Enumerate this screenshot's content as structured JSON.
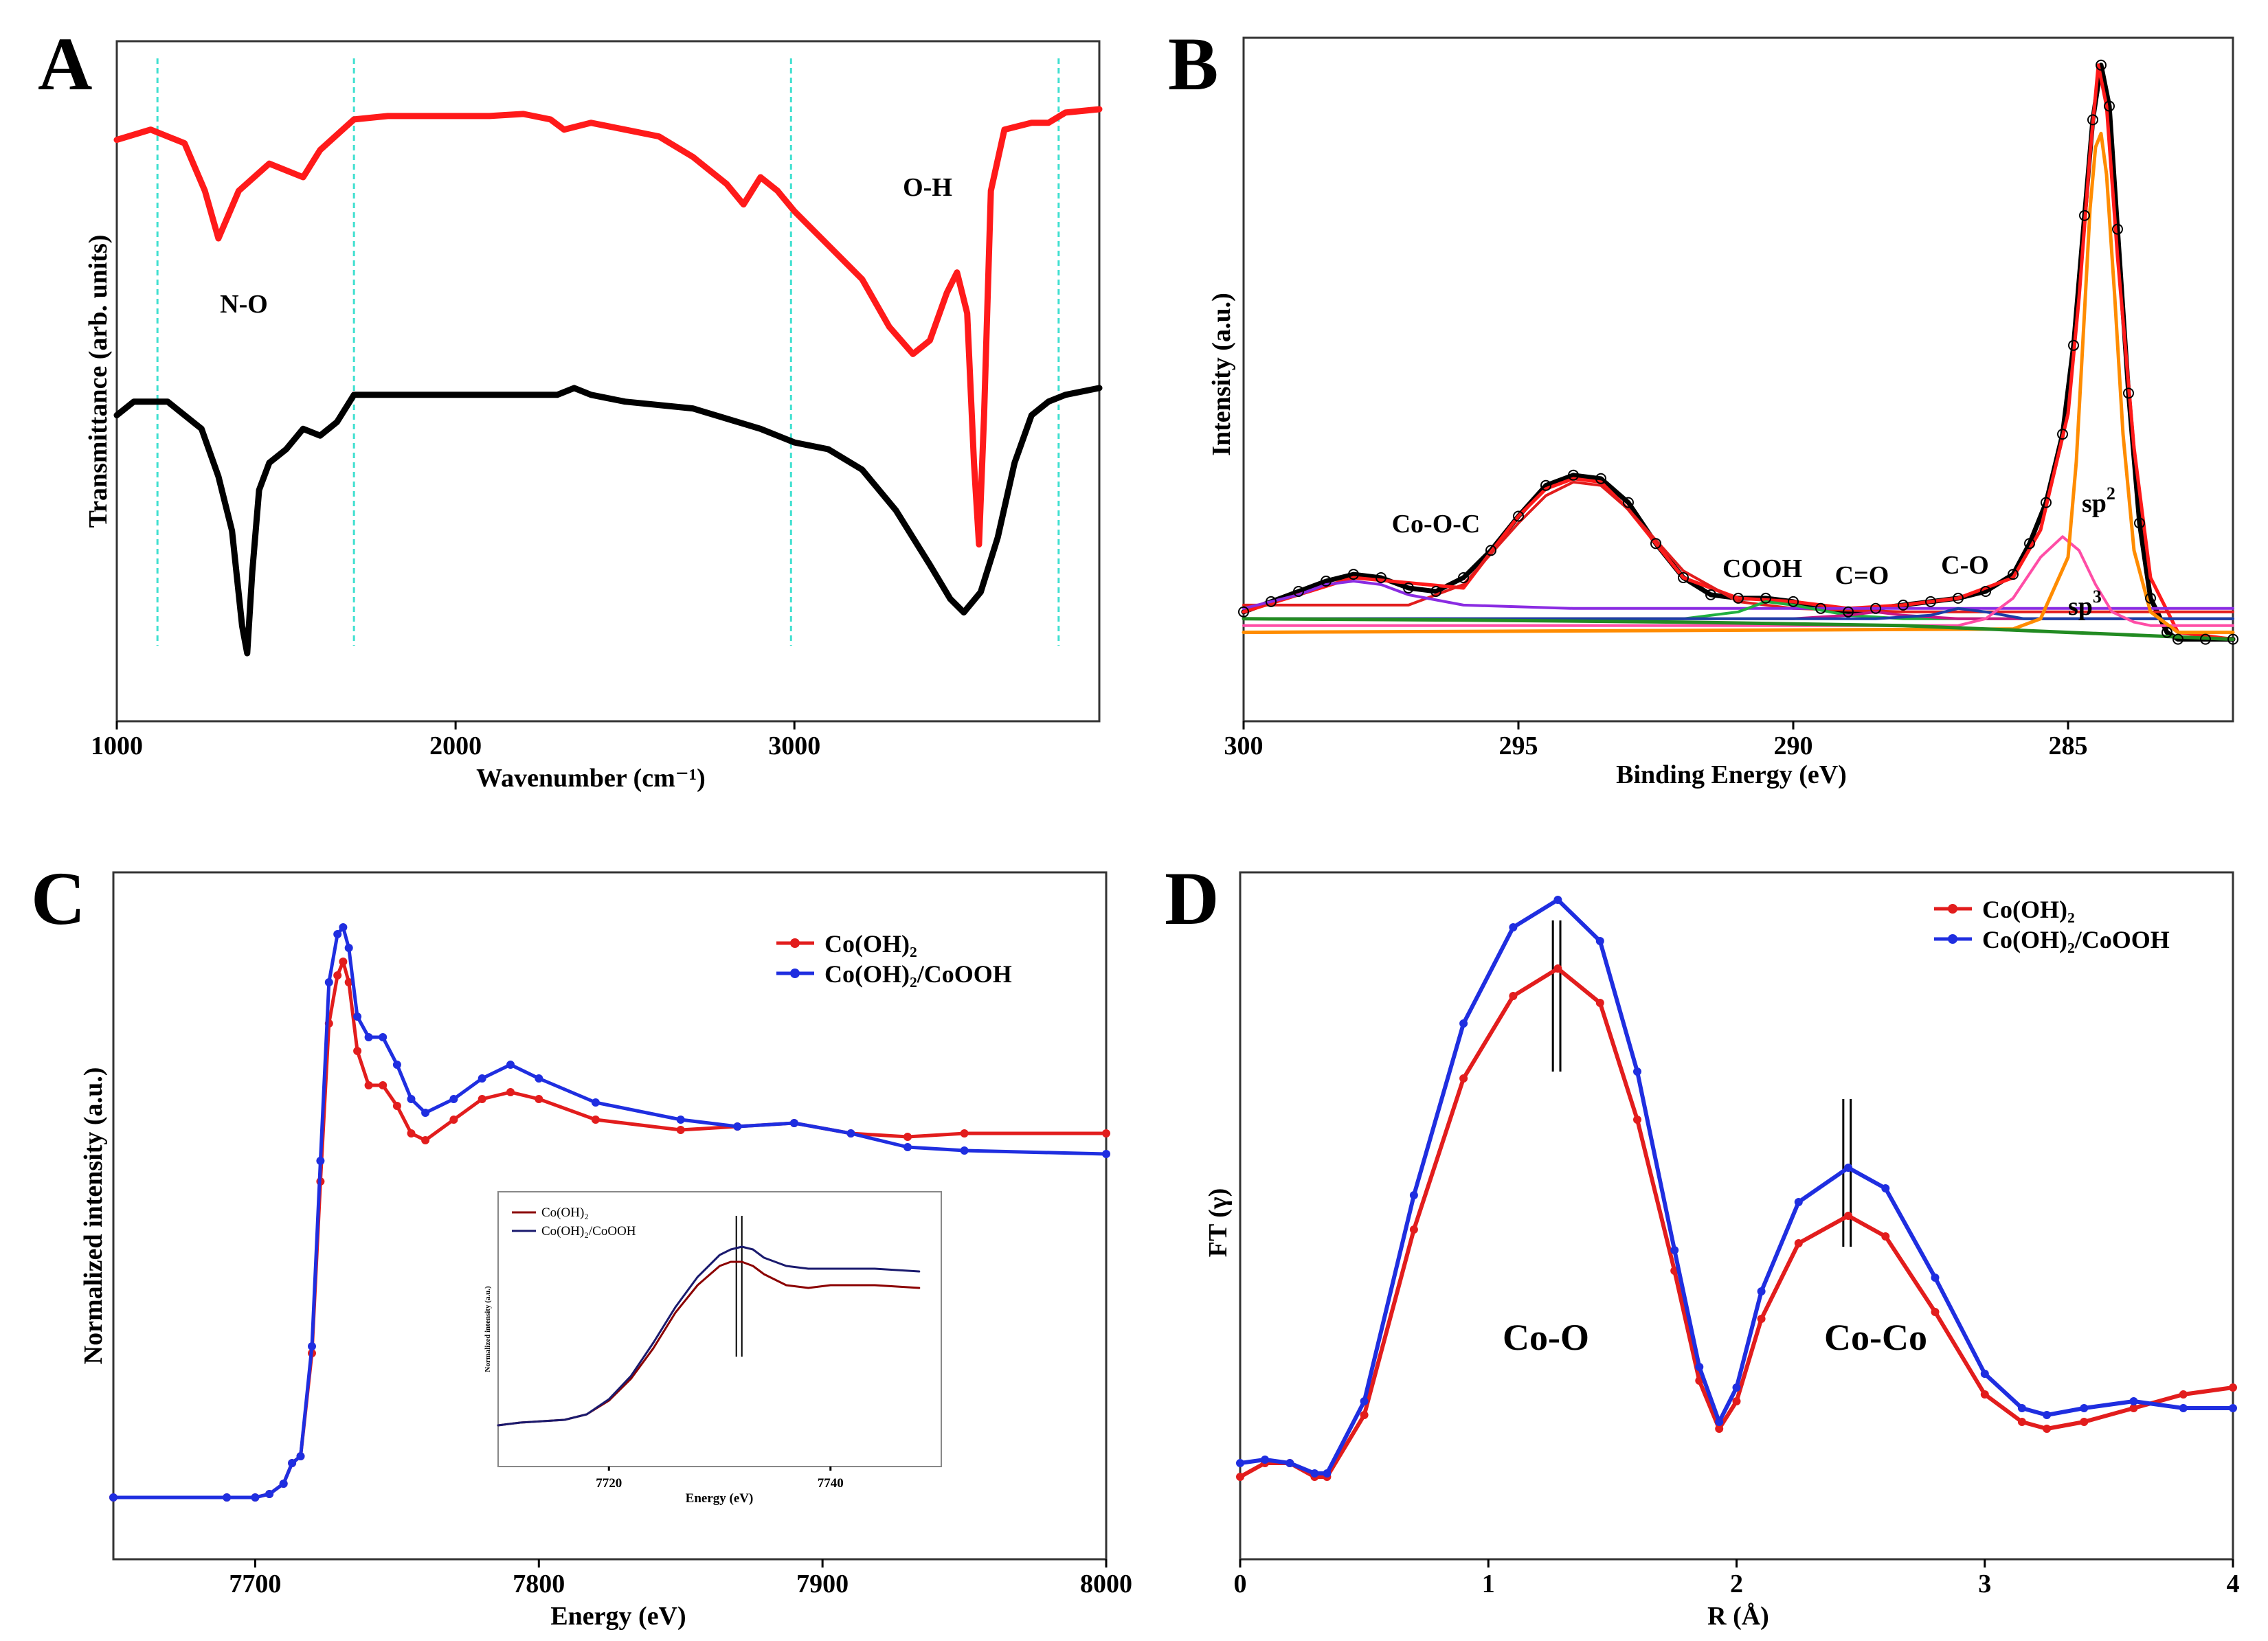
{
  "chart_data": [
    {
      "panel": "A",
      "type": "line",
      "title": "",
      "xlabel": "Wavenumber (cm⁻¹)",
      "ylabel": "Transmittance (arb. units)",
      "xlim": [
        1000,
        3900
      ],
      "ylim": [
        0,
        1
      ],
      "xticks": [
        1000,
        2000,
        3000
      ],
      "tick_labels": [
        "1000",
        "2000",
        "3000"
      ],
      "annotations": [
        "N-O",
        "O-H"
      ],
      "reference_lines_x": [
        1120,
        1700,
        2990,
        3780
      ],
      "series": [
        {
          "name": "top trace (red)",
          "color": "#ff1a1a",
          "x": [
            1000,
            1100,
            1200,
            1260,
            1300,
            1360,
            1450,
            1550,
            1600,
            1700,
            1800,
            2000,
            2100,
            2200,
            2280,
            2320,
            2400,
            2500,
            2600,
            2700,
            2800,
            2850,
            2900,
            2950,
            3000,
            3100,
            3200,
            3280,
            3350,
            3400,
            3450,
            3480,
            3510,
            3530,
            3545,
            3560,
            3580,
            3620,
            3700,
            3750,
            3800,
            3900
          ],
          "y": [
            0.855,
            0.87,
            0.85,
            0.78,
            0.71,
            0.78,
            0.82,
            0.8,
            0.84,
            0.885,
            0.89,
            0.89,
            0.89,
            0.893,
            0.885,
            0.87,
            0.88,
            0.87,
            0.86,
            0.83,
            0.79,
            0.76,
            0.8,
            0.78,
            0.75,
            0.7,
            0.65,
            0.58,
            0.54,
            0.56,
            0.63,
            0.66,
            0.6,
            0.38,
            0.26,
            0.45,
            0.78,
            0.87,
            0.88,
            0.88,
            0.895,
            0.9
          ]
        },
        {
          "name": "bottom trace (black)",
          "color": "#000000",
          "x": [
            1000,
            1050,
            1150,
            1250,
            1300,
            1340,
            1370,
            1385,
            1400,
            1420,
            1450,
            1500,
            1550,
            1600,
            1650,
            1700,
            1800,
            2000,
            2200,
            2300,
            2350,
            2400,
            2500,
            2700,
            2900,
            3000,
            3100,
            3200,
            3300,
            3400,
            3460,
            3500,
            3550,
            3600,
            3650,
            3700,
            3750,
            3800,
            3900
          ],
          "y": [
            0.45,
            0.47,
            0.47,
            0.43,
            0.36,
            0.28,
            0.14,
            0.1,
            0.22,
            0.34,
            0.38,
            0.4,
            0.43,
            0.42,
            0.44,
            0.48,
            0.48,
            0.48,
            0.48,
            0.48,
            0.49,
            0.48,
            0.47,
            0.46,
            0.43,
            0.41,
            0.4,
            0.37,
            0.31,
            0.23,
            0.18,
            0.16,
            0.19,
            0.27,
            0.38,
            0.45,
            0.47,
            0.48,
            0.49
          ]
        }
      ]
    },
    {
      "panel": "B",
      "type": "line",
      "title": "",
      "xlabel": "Binding Energy (eV)",
      "ylabel": "Intensity (a.u.)",
      "xlim": [
        300,
        282
      ],
      "ylim": [
        0,
        1
      ],
      "xticks": [
        300,
        295,
        290,
        285
      ],
      "tick_labels": [
        "300",
        "295",
        "290",
        "285"
      ],
      "annotations": [
        "Co-O-C",
        "COOH",
        "C=O",
        "C-O",
        "sp2",
        "sp3"
      ],
      "series": [
        {
          "name": "experimental data",
          "color": "#000000",
          "x": [
            300,
            299.5,
            299,
            298.5,
            298,
            297.5,
            297,
            296.5,
            296,
            295.5,
            295,
            294.5,
            294,
            293.5,
            293,
            292.5,
            292,
            291.5,
            291,
            290.5,
            290,
            289.5,
            289,
            288.5,
            288,
            287.5,
            287,
            286.5,
            286,
            285.7,
            285.4,
            285.1,
            284.9,
            284.7,
            284.55,
            284.4,
            284.25,
            284.1,
            283.9,
            283.7,
            283.5,
            283.2,
            283,
            282.5,
            282
          ],
          "y": [
            0.16,
            0.175,
            0.19,
            0.205,
            0.215,
            0.21,
            0.195,
            0.19,
            0.21,
            0.25,
            0.3,
            0.345,
            0.36,
            0.355,
            0.32,
            0.26,
            0.21,
            0.185,
            0.18,
            0.18,
            0.175,
            0.165,
            0.16,
            0.165,
            0.17,
            0.175,
            0.18,
            0.19,
            0.215,
            0.26,
            0.32,
            0.42,
            0.55,
            0.74,
            0.88,
            0.96,
            0.9,
            0.72,
            0.48,
            0.29,
            0.18,
            0.13,
            0.12,
            0.12,
            0.12
          ]
        },
        {
          "name": "envelope fit",
          "color": "#ff1a1a",
          "x": [
            300,
            298,
            296,
            295,
            294.5,
            294,
            293.5,
            293,
            292,
            291,
            290,
            289,
            288,
            287,
            286,
            285.5,
            285,
            284.8,
            284.6,
            284.45,
            284.3,
            284.1,
            283.8,
            283.5,
            283,
            282
          ],
          "y": [
            0.16,
            0.21,
            0.195,
            0.3,
            0.34,
            0.355,
            0.35,
            0.31,
            0.21,
            0.18,
            0.175,
            0.165,
            0.17,
            0.18,
            0.21,
            0.28,
            0.45,
            0.62,
            0.83,
            0.96,
            0.9,
            0.68,
            0.4,
            0.21,
            0.13,
            0.12
          ]
        },
        {
          "name": "Co-O-C peak (red)",
          "color": "#e21d1d",
          "x": [
            300,
            297,
            296,
            295,
            294.5,
            294,
            293.5,
            293,
            292,
            291,
            290,
            288,
            282
          ],
          "y": [
            0.17,
            0.17,
            0.2,
            0.29,
            0.33,
            0.35,
            0.345,
            0.31,
            0.22,
            0.175,
            0.165,
            0.16,
            0.16
          ]
        },
        {
          "name": "Co-O-C peak (purple)",
          "color": "#8a2be2",
          "x": [
            300,
            299,
            298.5,
            298,
            297.5,
            297,
            296,
            294,
            290,
            282
          ],
          "y": [
            0.165,
            0.185,
            0.2,
            0.205,
            0.2,
            0.185,
            0.17,
            0.165,
            0.165,
            0.165
          ]
        },
        {
          "name": "COOH peak",
          "color": "#20b040",
          "x": [
            300,
            292,
            291,
            290.5,
            290,
            289,
            288,
            282
          ],
          "y": [
            0.15,
            0.15,
            0.16,
            0.175,
            0.17,
            0.155,
            0.15,
            0.15
          ]
        },
        {
          "name": "C=O peak",
          "color": "#c71585",
          "x": [
            300,
            290,
            289,
            288.5,
            288,
            287,
            282
          ],
          "y": [
            0.15,
            0.15,
            0.155,
            0.16,
            0.155,
            0.15,
            0.15
          ]
        },
        {
          "name": "C-O peak",
          "color": "#1a3ea8",
          "x": [
            300,
            288.5,
            287.5,
            287,
            286.5,
            285.8,
            282
          ],
          "y": [
            0.15,
            0.15,
            0.155,
            0.165,
            0.16,
            0.15,
            0.15
          ]
        },
        {
          "name": "sp3 peak",
          "color": "#ff4da6",
          "x": [
            300,
            287,
            286.5,
            286,
            285.5,
            285.1,
            284.8,
            284.5,
            284.2,
            283.8,
            283.5,
            282
          ],
          "y": [
            0.14,
            0.14,
            0.15,
            0.18,
            0.24,
            0.27,
            0.25,
            0.2,
            0.16,
            0.145,
            0.14,
            0.14
          ]
        },
        {
          "name": "sp2 peak",
          "color": "#ff8c00",
          "x": [
            300,
            286,
            285.5,
            285,
            284.85,
            284.7,
            284.6,
            284.5,
            284.4,
            284.3,
            284.15,
            284,
            283.8,
            283.5,
            283,
            282
          ],
          "y": [
            0.13,
            0.135,
            0.15,
            0.24,
            0.38,
            0.6,
            0.75,
            0.84,
            0.86,
            0.8,
            0.62,
            0.42,
            0.25,
            0.16,
            0.13,
            0.13
          ]
        },
        {
          "name": "baseline",
          "color": "#228b22",
          "x": [
            300,
            296,
            292,
            288,
            285,
            282
          ],
          "y": [
            0.15,
            0.148,
            0.145,
            0.14,
            0.13,
            0.12
          ]
        }
      ]
    },
    {
      "panel": "C",
      "type": "line",
      "title": "",
      "xlabel": "Energy (eV)",
      "ylabel": "Normalized intensity (a.u.)",
      "xlim": [
        7650,
        8000
      ],
      "ylim": [
        0,
        1
      ],
      "xticks": [
        7700,
        7800,
        7900,
        8000
      ],
      "tick_labels": [
        "7700",
        "7800",
        "7900",
        "8000"
      ],
      "legend": [
        "Co(OH)₂",
        "Co(OH)₂/CoOOH"
      ],
      "legend_position": "top-right",
      "series": [
        {
          "name": "Co(OH)₂",
          "color": "#e21d1d",
          "x": [
            7650,
            7690,
            7700,
            7705,
            7710,
            7713,
            7716,
            7720,
            7723,
            7726,
            7729,
            7731,
            7733,
            7736,
            7740,
            7745,
            7750,
            7755,
            7760,
            7770,
            7780,
            7790,
            7800,
            7820,
            7850,
            7870,
            7890,
            7910,
            7930,
            7950,
            8000
          ],
          "y": [
            0.09,
            0.09,
            0.09,
            0.095,
            0.11,
            0.14,
            0.15,
            0.3,
            0.55,
            0.78,
            0.85,
            0.87,
            0.84,
            0.74,
            0.69,
            0.69,
            0.66,
            0.62,
            0.61,
            0.64,
            0.67,
            0.68,
            0.67,
            0.64,
            0.625,
            0.63,
            0.635,
            0.62,
            0.615,
            0.62,
            0.62
          ]
        },
        {
          "name": "Co(OH)₂/CoOOH",
          "color": "#1f2ee0",
          "x": [
            7650,
            7690,
            7700,
            7705,
            7710,
            7713,
            7716,
            7720,
            7723,
            7726,
            7729,
            7731,
            7733,
            7736,
            7740,
            7745,
            7750,
            7755,
            7760,
            7770,
            7780,
            7790,
            7800,
            7820,
            7850,
            7870,
            7890,
            7910,
            7930,
            7950,
            8000
          ],
          "y": [
            0.09,
            0.09,
            0.09,
            0.095,
            0.11,
            0.14,
            0.15,
            0.31,
            0.58,
            0.84,
            0.91,
            0.92,
            0.89,
            0.79,
            0.76,
            0.76,
            0.72,
            0.67,
            0.65,
            0.67,
            0.7,
            0.72,
            0.7,
            0.665,
            0.64,
            0.63,
            0.635,
            0.62,
            0.6,
            0.595,
            0.59
          ]
        }
      ]
    },
    {
      "panel": "C-inset",
      "type": "line",
      "title": "",
      "xlabel": "Energy (eV)",
      "ylabel": "Normalized intensity (a.u.)",
      "xlim": [
        7710,
        7750
      ],
      "ylim": [
        0,
        1
      ],
      "xticks": [
        7720,
        7740
      ],
      "tick_labels": [
        "7720",
        "7740"
      ],
      "legend": [
        "Co(OH)₂",
        "Co(OH)₂/CoOOH"
      ],
      "legend_position": "top-left",
      "reference_lines_x": [
        7731.5,
        7732.0
      ],
      "series": [
        {
          "name": "Co(OH)₂",
          "color": "#8b0000",
          "x": [
            7710,
            7712,
            7714,
            7716,
            7718,
            7720,
            7722,
            7724,
            7726,
            7728,
            7730,
            7731,
            7732,
            7733,
            7734,
            7736,
            7738,
            7740,
            7744,
            7748
          ],
          "y": [
            0.15,
            0.16,
            0.165,
            0.17,
            0.19,
            0.24,
            0.32,
            0.43,
            0.56,
            0.66,
            0.73,
            0.745,
            0.745,
            0.73,
            0.7,
            0.66,
            0.65,
            0.66,
            0.66,
            0.65
          ]
        },
        {
          "name": "Co(OH)₂/CoOOH",
          "color": "#1a1a6e",
          "x": [
            7710,
            7712,
            7714,
            7716,
            7718,
            7720,
            7722,
            7724,
            7726,
            7728,
            7730,
            7731,
            7732,
            7733,
            7734,
            7736,
            7738,
            7740,
            7744,
            7748
          ],
          "y": [
            0.15,
            0.16,
            0.165,
            0.17,
            0.19,
            0.245,
            0.33,
            0.45,
            0.58,
            0.69,
            0.77,
            0.79,
            0.8,
            0.79,
            0.76,
            0.73,
            0.72,
            0.72,
            0.72,
            0.71
          ]
        }
      ]
    },
    {
      "panel": "D",
      "type": "line",
      "title": "",
      "xlabel": "R (Å)",
      "ylabel": "FT (γ)",
      "xlim": [
        0,
        4
      ],
      "ylim": [
        0,
        1
      ],
      "xticks": [
        0,
        1,
        2,
        3,
        4
      ],
      "tick_labels": [
        "0",
        "1",
        "2",
        "3",
        "4"
      ],
      "legend": [
        "Co(OH)₂",
        "Co(OH)₂/CoOOH"
      ],
      "legend_position": "top-right",
      "annotations": [
        "Co-O",
        "Co-Co"
      ],
      "reference_lines_x": [
        1.26,
        1.29,
        2.43,
        2.46
      ],
      "series": [
        {
          "name": "Co(OH)₂",
          "color": "#e21d1d",
          "x": [
            0,
            0.1,
            0.2,
            0.3,
            0.35,
            0.5,
            0.7,
            0.9,
            1.1,
            1.28,
            1.45,
            1.6,
            1.75,
            1.85,
            1.93,
            2.0,
            2.1,
            2.25,
            2.45,
            2.6,
            2.8,
            3.0,
            3.15,
            3.25,
            3.4,
            3.6,
            3.8,
            4.0
          ],
          "y": [
            0.12,
            0.14,
            0.14,
            0.12,
            0.12,
            0.21,
            0.48,
            0.7,
            0.82,
            0.86,
            0.81,
            0.64,
            0.42,
            0.26,
            0.19,
            0.23,
            0.35,
            0.46,
            0.5,
            0.47,
            0.36,
            0.24,
            0.2,
            0.19,
            0.2,
            0.22,
            0.24,
            0.25
          ]
        },
        {
          "name": "Co(OH)₂/CoOOH",
          "color": "#1f2ee0",
          "x": [
            0,
            0.1,
            0.2,
            0.3,
            0.35,
            0.5,
            0.7,
            0.9,
            1.1,
            1.28,
            1.45,
            1.6,
            1.75,
            1.85,
            1.93,
            2.0,
            2.1,
            2.25,
            2.45,
            2.6,
            2.8,
            3.0,
            3.15,
            3.25,
            3.4,
            3.6,
            3.8,
            4.0
          ],
          "y": [
            0.14,
            0.145,
            0.14,
            0.125,
            0.125,
            0.23,
            0.53,
            0.78,
            0.92,
            0.96,
            0.9,
            0.71,
            0.45,
            0.28,
            0.2,
            0.25,
            0.39,
            0.52,
            0.57,
            0.54,
            0.41,
            0.27,
            0.22,
            0.21,
            0.22,
            0.23,
            0.22,
            0.22
          ]
        }
      ]
    }
  ],
  "labels": {
    "panel_a": "A",
    "panel_b": "B",
    "panel_c": "C",
    "panel_d": "D",
    "a_no": "N-O",
    "a_oh": "O-H",
    "b_cooc": "Co-O-C",
    "b_cooh": "COOH",
    "b_co_double": "C=O",
    "b_co_single": "C-O",
    "b_sp2_base": "sp",
    "b_sp2_sup": "2",
    "b_sp3_base": "sp",
    "b_sp3_sup": "3",
    "d_coo": "Co-O",
    "d_coco": "Co-Co"
  }
}
